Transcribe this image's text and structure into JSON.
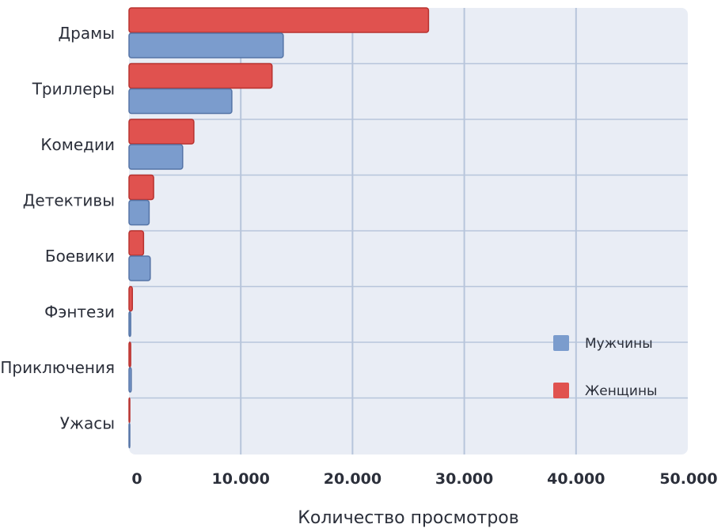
{
  "chart_data": {
    "type": "bar",
    "orientation": "horizontal",
    "categories": [
      "Драмы",
      "Триллеры",
      "Комедии",
      "Детективы",
      "Боевики",
      "Фэнтези",
      "Приключения",
      "Ужасы"
    ],
    "series": [
      {
        "name": "Женщины",
        "color": "#e0524f",
        "values": [
          26800,
          12800,
          5800,
          2200,
          1300,
          300,
          150,
          50
        ]
      },
      {
        "name": "Мужчины",
        "color": "#7b9ccd",
        "values": [
          13800,
          9200,
          4800,
          1800,
          1900,
          150,
          200,
          50
        ]
      }
    ],
    "xlabel": "Количество просмотров",
    "ylabel": "",
    "xlim": [
      0,
      50000
    ],
    "xticks": [
      0,
      10000,
      20000,
      30000,
      40000,
      50000
    ],
    "xtick_labels": [
      "0",
      "10.000",
      "20.000",
      "30.000",
      "40.000",
      "50.000"
    ],
    "grid": true,
    "legend_position": "bottom-right",
    "legend_order": [
      "Мужчины",
      "Женщины"
    ],
    "plot_background": "#e9edf5",
    "grid_color": "#b7c5db"
  }
}
